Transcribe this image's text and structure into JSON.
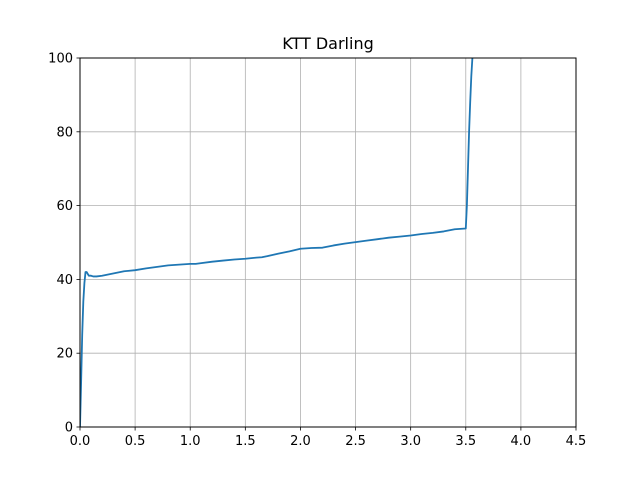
{
  "chart_data": {
    "type": "line",
    "title": "KTT Darling",
    "xlabel": "",
    "ylabel": "",
    "xlim": [
      0,
      4.5
    ],
    "ylim": [
      0,
      100
    ],
    "x_ticks": [
      "0.0",
      "0.5",
      "1.0",
      "1.5",
      "2.0",
      "2.5",
      "3.0",
      "3.5",
      "4.0",
      "4.5"
    ],
    "y_ticks": [
      "0",
      "20",
      "40",
      "60",
      "80",
      "100"
    ],
    "grid": true,
    "legend": "none",
    "series": [
      {
        "color": "#1f77b4",
        "x": [
          0.0,
          0.01,
          0.02,
          0.03,
          0.04,
          0.05,
          0.06,
          0.07,
          0.08,
          0.1,
          0.12,
          0.15,
          0.2,
          0.25,
          0.3,
          0.35,
          0.4,
          0.5,
          0.6,
          0.7,
          0.75,
          0.8,
          0.9,
          1.0,
          1.05,
          1.1,
          1.2,
          1.3,
          1.4,
          1.5,
          1.6,
          1.65,
          1.7,
          1.8,
          1.9,
          2.0,
          2.1,
          2.2,
          2.3,
          2.4,
          2.5,
          2.6,
          2.7,
          2.8,
          2.9,
          3.0,
          3.1,
          3.2,
          3.3,
          3.4,
          3.45,
          3.5,
          3.51,
          3.52,
          3.53,
          3.54,
          3.55,
          3.56,
          3.57
        ],
        "y": [
          0,
          12,
          25,
          34,
          39,
          42,
          42,
          41.5,
          41,
          41,
          40.8,
          40.8,
          41,
          41.3,
          41.6,
          41.9,
          42.2,
          42.5,
          43,
          43.4,
          43.6,
          43.8,
          44,
          44.2,
          44.2,
          44.4,
          44.8,
          45.1,
          45.4,
          45.6,
          45.9,
          46.0,
          46.3,
          47,
          47.6,
          48.3,
          48.5,
          48.6,
          49.2,
          49.7,
          50.1,
          50.5,
          50.9,
          51.3,
          51.6,
          51.9,
          52.3,
          52.6,
          53,
          53.6,
          53.7,
          53.8,
          60,
          70,
          80,
          88,
          95,
          100,
          102
        ]
      }
    ]
  }
}
